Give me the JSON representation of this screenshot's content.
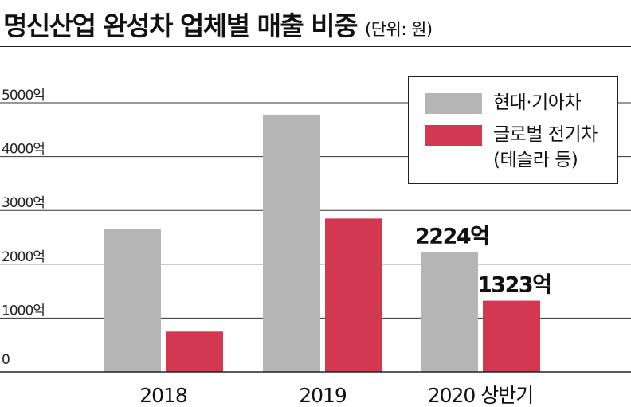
{
  "title": "명신산업 완성차 업체별 매출 비중",
  "unit": "(단위: 원)",
  "colors": {
    "hyundai": "#b5b5b5",
    "global": "#d2384f"
  },
  "legend": [
    {
      "label": "현대·기아차"
    },
    {
      "label": "글로벌 전기차\n(테슬라 등)"
    }
  ],
  "chart_data": {
    "type": "bar",
    "categories": [
      "2018",
      "2019",
      "2020 상반기"
    ],
    "series": [
      {
        "name": "현대·기아차",
        "values": [
          2660,
          4780,
          2224
        ]
      },
      {
        "name": "글로벌 전기차 (테슬라 등)",
        "values": [
          750,
          2850,
          1323
        ]
      }
    ],
    "y_ticks": [
      "0",
      "1000억",
      "2000억",
      "3000억",
      "4000억",
      "5000억"
    ],
    "y_tick_values": [
      0,
      1000,
      2000,
      3000,
      4000,
      5000
    ],
    "ylim": [
      0,
      5000
    ],
    "data_labels": [
      {
        "series": 0,
        "category": 2,
        "text": "2224억"
      },
      {
        "series": 1,
        "category": 2,
        "text": "1323억"
      }
    ],
    "grid": true,
    "legend_position": "top-right"
  }
}
